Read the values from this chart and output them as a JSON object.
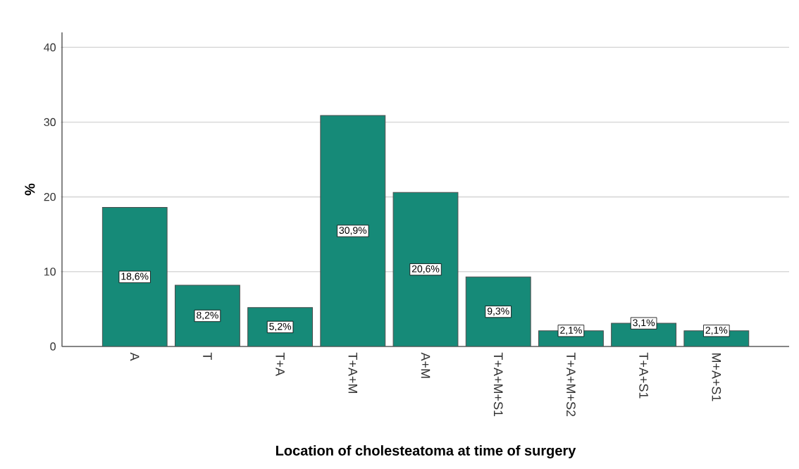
{
  "chart_data": {
    "type": "bar",
    "xlabel": "Location of cholesteatoma at time of surgery",
    "ylabel": "%",
    "categories": [
      "A",
      "T",
      "T+A",
      "T+A+M",
      "A+M",
      "T+A+M+S1",
      "T+A+M+S2",
      "T+A+S1",
      "M+A+S1"
    ],
    "values": [
      18.6,
      8.2,
      5.2,
      30.9,
      20.6,
      9.3,
      2.1,
      3.1,
      2.1
    ],
    "value_labels": [
      "18,6%",
      "8,2%",
      "5,2%",
      "30,9%",
      "20,6%",
      "9,3%",
      "2,1%",
      "3,1%",
      "2,1%"
    ],
    "color": "#168a78",
    "ylim": [
      0,
      42
    ],
    "yticks": [
      0,
      10,
      20,
      30,
      40
    ],
    "grid": "y"
  }
}
